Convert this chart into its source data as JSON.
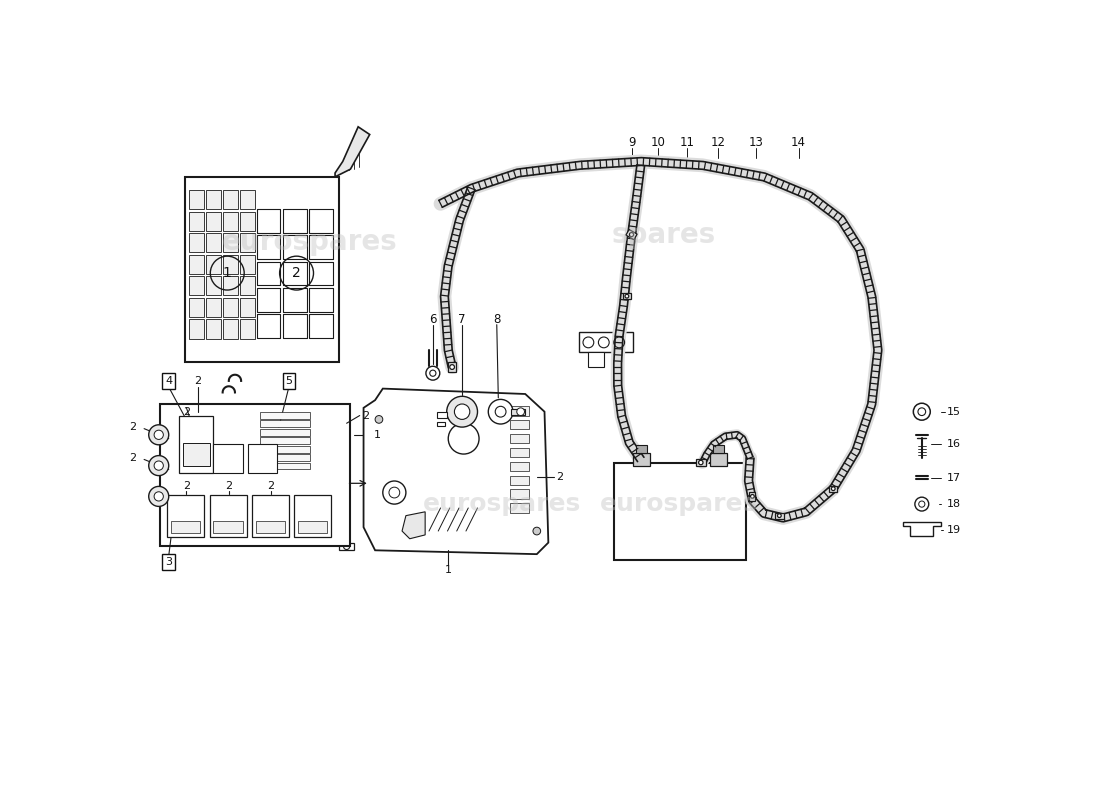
{
  "bg_color": "#ffffff",
  "line_color": "#1a1a1a",
  "fig_width": 11.0,
  "fig_height": 8.0,
  "dpi": 100,
  "watermark1_text": "eurospares",
  "watermark2_text": "spares",
  "watermark3_text": "eurospares"
}
